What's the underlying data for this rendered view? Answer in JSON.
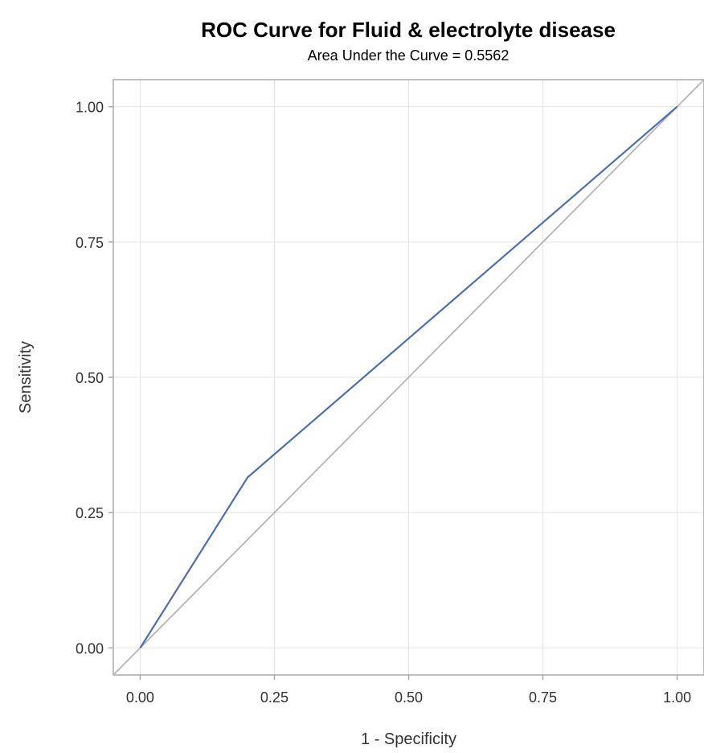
{
  "chart_data": {
    "type": "line",
    "title": "ROC Curve for Fluid & electrolyte disease",
    "subtitle": "Area Under the Curve = 0.5562",
    "xlabel": "1 - Specificity",
    "ylabel": "Sensitivity",
    "xlim": [
      -0.05,
      1.05
    ],
    "ylim": [
      -0.05,
      1.05
    ],
    "xticks": [
      "0.00",
      "0.25",
      "0.50",
      "0.75",
      "1.00"
    ],
    "yticks": [
      "0.00",
      "0.25",
      "0.50",
      "0.75",
      "1.00"
    ],
    "grid": true,
    "series": [
      {
        "x": [
          0.0,
          0.2,
          1.0
        ],
        "y": [
          0.0,
          0.315,
          1.0
        ],
        "color": "#4a6fb5"
      },
      {
        "x": [
          -0.05,
          1.05
        ],
        "y": [
          -0.05,
          1.05
        ],
        "color": "#b4b4b4"
      }
    ]
  }
}
